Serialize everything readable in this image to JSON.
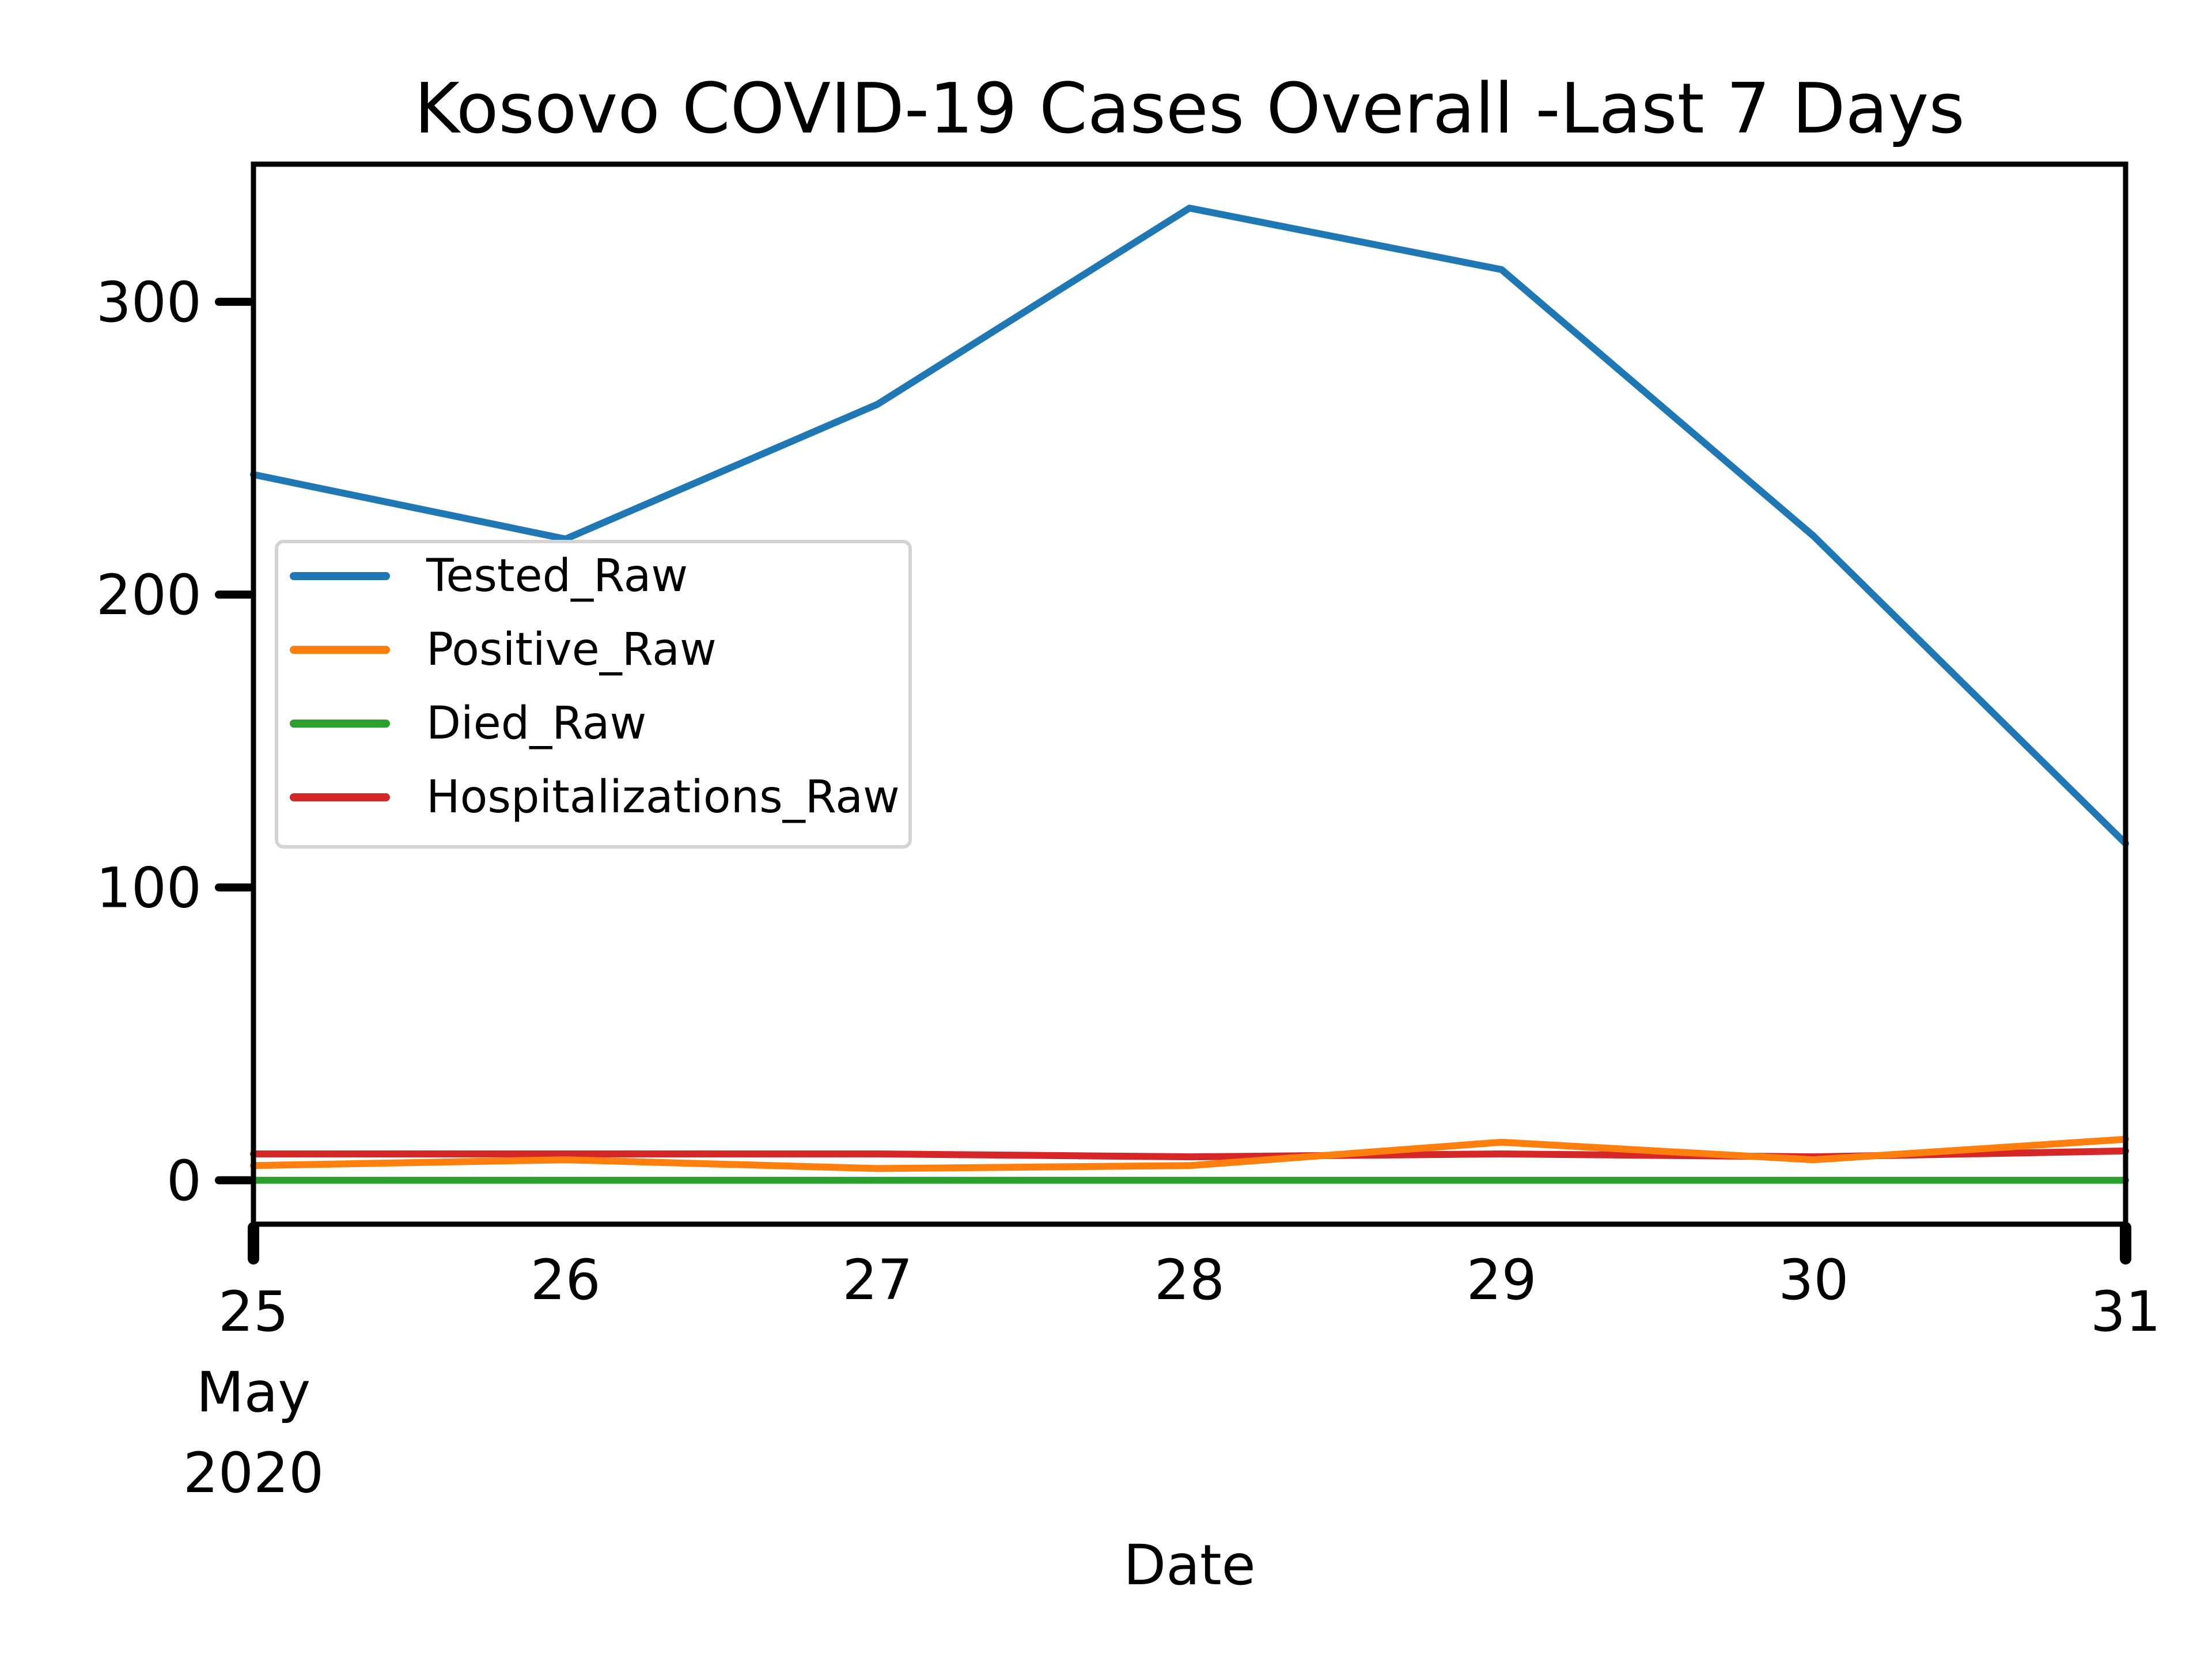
{
  "chart_data": {
    "type": "line",
    "title": "Kosovo COVID-19 Cases Overall -Last 7 Days",
    "xlabel": "Date",
    "ylabel": "",
    "x": [
      "2020-05-25",
      "2020-05-26",
      "2020-05-27",
      "2020-05-28",
      "2020-05-29",
      "2020-05-30",
      "2020-05-31"
    ],
    "x_tick_labels": [
      {
        "lines": [
          "25",
          "May",
          "2020"
        ]
      },
      {
        "lines": [
          "26"
        ]
      },
      {
        "lines": [
          "27"
        ]
      },
      {
        "lines": [
          "28"
        ]
      },
      {
        "lines": [
          "29"
        ]
      },
      {
        "lines": [
          "30"
        ]
      },
      {
        "lines": [
          "31"
        ]
      }
    ],
    "y_ticks": [
      0,
      100,
      200,
      300
    ],
    "y_tick_labels": [
      "0",
      "100",
      "200",
      "300"
    ],
    "ylim": [
      -15,
      347
    ],
    "grid": false,
    "legend_position": "center-left",
    "series": [
      {
        "name": "Tested_Raw",
        "color": "#1f77b4",
        "values": [
          241,
          219,
          265,
          332,
          311,
          220,
          115
        ]
      },
      {
        "name": "Positive_Raw",
        "color": "#ff7f0e",
        "values": [
          5,
          7,
          4,
          5,
          13,
          7,
          14
        ]
      },
      {
        "name": "Died_Raw",
        "color": "#2ca02c",
        "values": [
          0,
          0,
          0,
          0,
          0,
          0,
          0
        ]
      },
      {
        "name": "Hospitalizations_Raw",
        "color": "#d62728",
        "values": [
          9,
          9,
          9,
          8,
          9,
          8,
          10
        ]
      }
    ]
  }
}
